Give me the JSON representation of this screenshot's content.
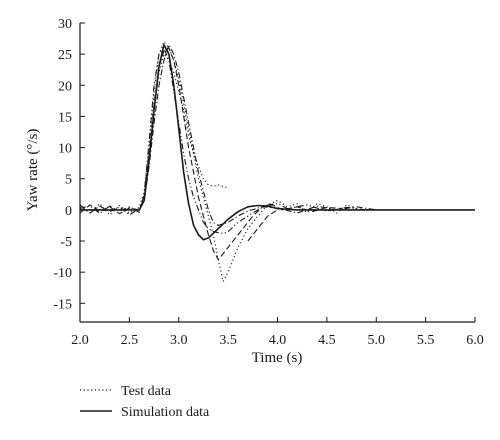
{
  "chart_data": {
    "type": "line",
    "xlabel": "Time (s)",
    "ylabel": "Yaw rate (°/s)",
    "xlim": [
      2.0,
      6.0
    ],
    "ylim": [
      -18,
      30
    ],
    "x_ticks": [
      2.0,
      2.5,
      3.0,
      3.5,
      4.0,
      4.5,
      5.0,
      5.5,
      6.0
    ],
    "x_tick_labels": [
      "2.0",
      "2.5",
      "3.0",
      "3.5",
      "4.0",
      "4.5",
      "5.0",
      "5.5",
      "6.0"
    ],
    "y_ticks": [
      -15,
      -10,
      -5,
      0,
      5,
      10,
      15,
      20,
      25,
      30
    ],
    "y_tick_labels": [
      "-15",
      "-10",
      "-5",
      "0",
      "5",
      "10",
      "15",
      "20",
      "25",
      "30"
    ],
    "grid": false,
    "legend_position": "bottom-left, below plot",
    "series": [
      {
        "name": "Simulation data",
        "style": "solid",
        "points": [
          [
            2.0,
            0
          ],
          [
            2.6,
            0
          ],
          [
            2.65,
            1.5
          ],
          [
            2.7,
            8
          ],
          [
            2.75,
            16
          ],
          [
            2.8,
            23
          ],
          [
            2.85,
            26.5
          ],
          [
            2.9,
            25
          ],
          [
            2.95,
            20
          ],
          [
            3.0,
            13
          ],
          [
            3.05,
            6
          ],
          [
            3.1,
            1
          ],
          [
            3.15,
            -2.5
          ],
          [
            3.2,
            -4
          ],
          [
            3.25,
            -4.8
          ],
          [
            3.3,
            -4.5
          ],
          [
            3.4,
            -3
          ],
          [
            3.5,
            -1.5
          ],
          [
            3.6,
            -0.3
          ],
          [
            3.7,
            0.5
          ],
          [
            3.8,
            0.7
          ],
          [
            3.9,
            0.6
          ],
          [
            4.0,
            0.2
          ],
          [
            4.2,
            0
          ],
          [
            6.0,
            0
          ]
        ]
      },
      {
        "name": "Test data",
        "style": "dotted",
        "points": [
          [
            2.0,
            0.5
          ],
          [
            2.1,
            -0.5
          ],
          [
            2.2,
            1
          ],
          [
            2.3,
            -0.8
          ],
          [
            2.4,
            0.7
          ],
          [
            2.5,
            -0.5
          ],
          [
            2.6,
            0.4
          ],
          [
            2.65,
            3
          ],
          [
            2.7,
            10
          ],
          [
            2.75,
            19
          ],
          [
            2.8,
            25
          ],
          [
            2.85,
            27
          ],
          [
            2.9,
            26
          ],
          [
            2.95,
            24
          ],
          [
            3.0,
            21
          ],
          [
            3.05,
            17
          ],
          [
            3.1,
            13
          ],
          [
            3.15,
            9
          ],
          [
            3.2,
            5
          ],
          [
            3.25,
            2
          ],
          [
            3.3,
            -1
          ],
          [
            3.35,
            -4
          ],
          [
            3.4,
            -8
          ],
          [
            3.45,
            -11.5
          ],
          [
            3.5,
            -10
          ],
          [
            3.6,
            -6
          ],
          [
            3.7,
            -3
          ],
          [
            3.8,
            -1
          ],
          [
            3.9,
            0.8
          ],
          [
            4.0,
            1.5
          ],
          [
            4.1,
            0.5
          ],
          [
            4.2,
            1
          ],
          [
            4.3,
            -0.5
          ],
          [
            4.4,
            1
          ],
          [
            4.5,
            0.5
          ],
          [
            4.6,
            -0.5
          ],
          [
            4.7,
            0.8
          ],
          [
            4.8,
            0.2
          ]
        ]
      },
      {
        "name": "",
        "style": "dashed",
        "points": [
          [
            2.0,
            -0.5
          ],
          [
            2.1,
            0.8
          ],
          [
            2.2,
            -0.3
          ],
          [
            2.3,
            0.5
          ],
          [
            2.4,
            -0.6
          ],
          [
            2.5,
            0.3
          ],
          [
            2.6,
            0
          ],
          [
            2.65,
            2
          ],
          [
            2.7,
            9
          ],
          [
            2.75,
            17
          ],
          [
            2.8,
            23
          ],
          [
            2.85,
            25.5
          ],
          [
            2.9,
            26
          ],
          [
            2.95,
            24
          ],
          [
            3.0,
            20
          ],
          [
            3.05,
            15
          ],
          [
            3.1,
            10
          ],
          [
            3.15,
            6
          ],
          [
            3.2,
            2
          ],
          [
            3.25,
            -1
          ],
          [
            3.3,
            -4
          ],
          [
            3.35,
            -6.5
          ],
          [
            3.4,
            -8
          ],
          [
            3.45,
            -7
          ],
          [
            3.55,
            -5
          ],
          [
            3.65,
            -3
          ],
          [
            3.75,
            -1
          ],
          [
            3.85,
            0.5
          ],
          [
            3.95,
            0.8
          ],
          [
            4.05,
            0
          ],
          [
            4.2,
            0.5
          ],
          [
            4.35,
            -0.3
          ],
          [
            4.5,
            0.4
          ],
          [
            4.65,
            0.2
          ]
        ]
      },
      {
        "name": "",
        "style": "dashdot",
        "points": [
          [
            2.0,
            0.8
          ],
          [
            2.1,
            -0.5
          ],
          [
            2.2,
            0.6
          ],
          [
            2.3,
            -0.3
          ],
          [
            2.4,
            0.5
          ],
          [
            2.5,
            -0.8
          ],
          [
            2.6,
            0.2
          ],
          [
            2.65,
            1.5
          ],
          [
            2.7,
            7
          ],
          [
            2.75,
            14
          ],
          [
            2.8,
            20
          ],
          [
            2.85,
            24
          ],
          [
            2.9,
            26.5
          ],
          [
            2.95,
            25
          ],
          [
            3.0,
            22
          ],
          [
            3.05,
            18
          ],
          [
            3.1,
            14
          ],
          [
            3.15,
            10
          ],
          [
            3.2,
            6
          ],
          [
            3.25,
            3
          ],
          [
            3.3,
            0
          ],
          [
            3.35,
            -2
          ],
          [
            3.4,
            -2.5
          ],
          [
            3.5,
            -2
          ],
          [
            3.6,
            -1
          ],
          [
            3.7,
            -0.2
          ],
          [
            3.85,
            0.5
          ],
          [
            4.0,
            0.3
          ],
          [
            4.2,
            -0.5
          ],
          [
            4.4,
            0.6
          ],
          [
            4.6,
            0
          ],
          [
            4.8,
            0.5
          ],
          [
            5.0,
            0
          ]
        ]
      },
      {
        "name": "",
        "style": "dashdotdot",
        "points": [
          [
            2.0,
            0.2
          ],
          [
            2.1,
            0.7
          ],
          [
            2.2,
            -0.6
          ],
          [
            2.3,
            0.6
          ],
          [
            2.4,
            -0.2
          ],
          [
            2.5,
            0.5
          ],
          [
            2.6,
            -0.4
          ],
          [
            2.65,
            2.5
          ],
          [
            2.7,
            11
          ],
          [
            2.75,
            20
          ],
          [
            2.8,
            25
          ],
          [
            2.85,
            26
          ],
          [
            2.9,
            24
          ],
          [
            2.95,
            19
          ],
          [
            3.0,
            14
          ],
          [
            3.05,
            9
          ],
          [
            3.1,
            5
          ],
          [
            3.15,
            2
          ],
          [
            3.2,
            0
          ],
          [
            3.25,
            -2
          ],
          [
            3.3,
            -3
          ],
          [
            3.35,
            -3.5
          ],
          [
            3.45,
            -3.8
          ],
          [
            3.5,
            -3.5
          ],
          [
            3.6,
            -2
          ],
          [
            3.7,
            -1
          ],
          [
            3.8,
            0
          ],
          [
            3.9,
            0.8
          ],
          [
            4.0,
            1
          ],
          [
            4.1,
            0.2
          ],
          [
            4.3,
            0.8
          ],
          [
            4.5,
            -0.2
          ],
          [
            4.7,
            0.4
          ],
          [
            4.9,
            0
          ]
        ]
      },
      {
        "name": "",
        "style": "dotted",
        "points": [
          [
            2.6,
            0
          ],
          [
            2.65,
            2
          ],
          [
            2.7,
            8
          ],
          [
            2.75,
            16
          ],
          [
            2.8,
            22
          ],
          [
            2.85,
            25
          ],
          [
            2.9,
            24
          ],
          [
            2.95,
            22
          ],
          [
            3.0,
            19
          ],
          [
            3.05,
            16
          ],
          [
            3.1,
            12
          ],
          [
            3.15,
            9
          ],
          [
            3.2,
            7
          ],
          [
            3.25,
            5
          ],
          [
            3.3,
            4
          ],
          [
            3.35,
            3.8
          ],
          [
            3.4,
            4
          ],
          [
            3.5,
            3.5
          ]
        ]
      },
      {
        "name": "",
        "style": "dashed",
        "points": [
          [
            3.7,
            -5
          ],
          [
            3.75,
            -4
          ],
          [
            3.8,
            -3
          ],
          [
            3.9,
            -1
          ],
          [
            4.0,
            0
          ]
        ]
      }
    ]
  },
  "legend": {
    "items": [
      {
        "label": "Test data",
        "style": "dotted"
      },
      {
        "label": "Simulation data",
        "style": "solid"
      }
    ]
  }
}
